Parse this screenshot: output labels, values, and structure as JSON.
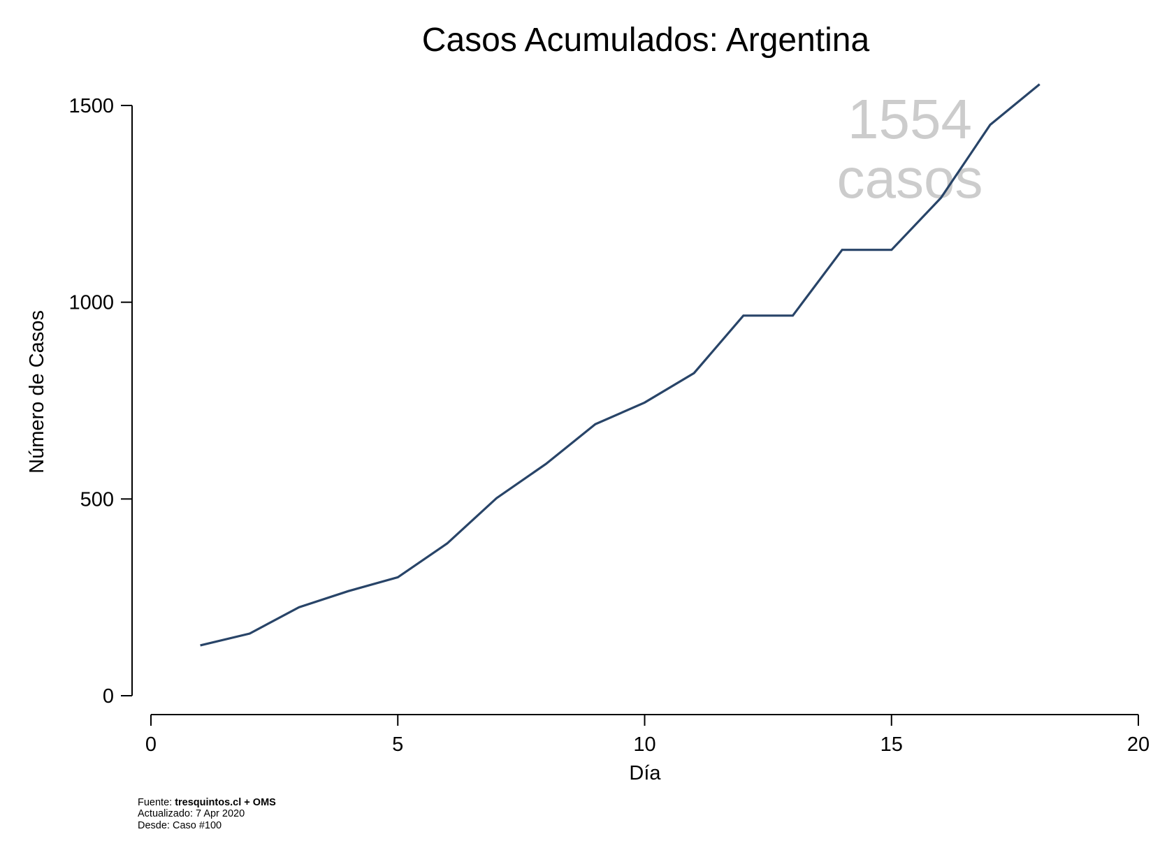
{
  "chart_data": {
    "type": "line",
    "title": "Casos Acumulados: Argentina",
    "xlabel": "Día",
    "ylabel": "Número de Casos",
    "xlim": [
      0,
      20
    ],
    "ylim": [
      0,
      1500
    ],
    "xticks": [
      0,
      5,
      10,
      15,
      20
    ],
    "yticks": [
      0,
      500,
      1000,
      1500
    ],
    "grid": false,
    "series": [
      {
        "name": "",
        "x": [
          1,
          2,
          3,
          4,
          5,
          6,
          7,
          8,
          9,
          10,
          11,
          12,
          13,
          14,
          15,
          16,
          17,
          18
        ],
        "values": [
          128,
          158,
          225,
          266,
          301,
          387,
          502,
          589,
          690,
          745,
          820,
          966,
          966,
          1133,
          1133,
          1265,
          1451,
          1554
        ]
      }
    ],
    "annotation": {
      "value": "1554",
      "unit": "casos"
    },
    "colors": {
      "line": "#284468",
      "annotation": "#cccccc"
    }
  },
  "footer": {
    "source_label": "Fuente: ",
    "source_value": "tresquintos.cl + OMS",
    "updated": "Actualizado: 7 Apr 2020",
    "since": "Desde: Caso #100"
  }
}
